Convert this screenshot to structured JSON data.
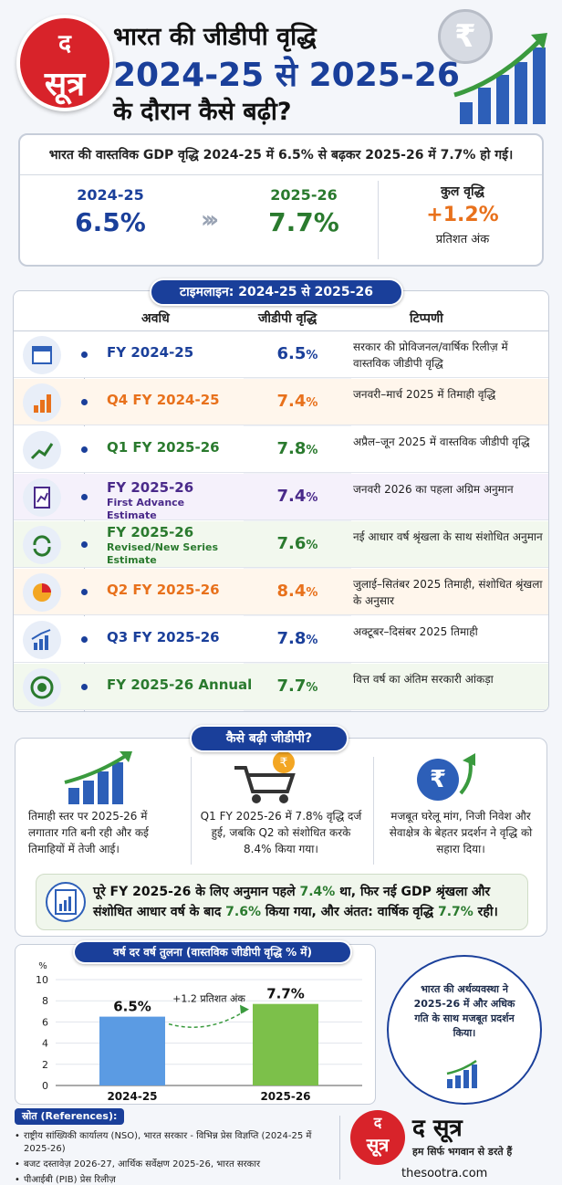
{
  "header": {
    "logo_top": "द",
    "logo_bottom": "सूत्र",
    "title_line1": "भारत की जीडीपी वृद्धि",
    "title_line2": "2024-25 से 2025-26",
    "title_line3": "के दौरान कैसे बढ़ी?",
    "rupee_symbol": "₹"
  },
  "summary": {
    "headline": "भारत की वास्तविक GDP वृद्धि 2024-25 में 6.5% से बढ़कर 2025-26 में 7.7% हो गई।",
    "from_label": "2024-25",
    "from_value": "6.5%",
    "to_label": "2025-26",
    "to_value": "7.7%",
    "chevrons": "›››",
    "change_label": "कुल वृद्धि",
    "change_value": "+1.2%",
    "change_unit": "प्रतिशत अंक"
  },
  "timeline": {
    "title": "टाइमलाइन: 2024-25 से 2025-26",
    "col_period": "अवधि",
    "col_growth": "जीडीपी वृद्धि",
    "col_note": "टिप्पणी",
    "rows": [
      {
        "period": "FY 2024-25",
        "sub": "",
        "value": "6.5",
        "note": "सरकार की प्रोविजनल/वार्षिक रिलीज़ में वास्तविक जीडीपी वृद्धि",
        "color": "#1a3f9a",
        "bg": "#ffffff",
        "icon": "calendar-icon"
      },
      {
        "period": "Q4 FY 2024-25",
        "sub": "",
        "value": "7.4",
        "note": "जनवरी–मार्च 2025 में तिमाही वृद्धि",
        "color": "#e8711c",
        "bg": "#fff6ec",
        "icon": "bar-chart-icon"
      },
      {
        "period": "Q1 FY 2025-26",
        "sub": "",
        "value": "7.8",
        "note": "अप्रैल–जून 2025 में वास्तविक जीडीपी वृद्धि",
        "color": "#2a7a2e",
        "bg": "#ffffff",
        "icon": "growth-chart-icon"
      },
      {
        "period": "FY 2025-26",
        "sub": "First Advance Estimate",
        "value": "7.4",
        "note": "जनवरी 2026 का पहला अग्रिम अनुमान",
        "color": "#4a2a8a",
        "bg": "#f5f1fb",
        "icon": "clipboard-chart-icon"
      },
      {
        "period": "FY 2025-26",
        "sub": "Revised/New Series Estimate",
        "value": "7.6",
        "note": "नई आधार वर्ष श्रृंखला के साथ संशोधित अनुमान",
        "color": "#2a7a2e",
        "bg": "#f2f8ee",
        "icon": "refresh-icon"
      },
      {
        "period": "Q2 FY 2025-26",
        "sub": "",
        "value": "8.4",
        "note": "जुलाई–सितंबर 2025 तिमाही, संशोधित श्रृंखला के अनुसार",
        "color": "#e8711c",
        "bg": "#fff6ec",
        "icon": "pie-chart-icon"
      },
      {
        "period": "Q3 FY 2025-26",
        "sub": "",
        "value": "7.8",
        "note": "अक्टूबर–दिसंबर 2025 तिमाही",
        "color": "#1a3f9a",
        "bg": "#ffffff",
        "icon": "line-chart-icon"
      },
      {
        "period": "FY 2025-26 Annual",
        "sub": "",
        "value": "7.7",
        "note": "वित्त वर्ष का अंतिम सरकारी आंकड़ा",
        "color": "#2a7a2e",
        "bg": "#f2f8ee",
        "icon": "target-icon"
      }
    ]
  },
  "how": {
    "title": "कैसे बढ़ी जीडीपी?",
    "col1": "तिमाही स्तर पर 2025-26 में लगातार गति बनी रही और कई तिमाहियों में तेजी आई।",
    "col2": "Q1 FY 2025-26 में 7.8% वृद्धि दर्ज हुई, जबकि Q2 को संशोधित करके 8.4% किया गया।",
    "col3": "मजबूत घरेलू मांग, निजी निवेश और सेवाक्षेत्र के बेहतर प्रदर्शन ने वृद्धि को सहारा दिया।",
    "rupee_symbol": "₹",
    "highlight_a": "पूरे FY 2025-26 के लिए अनुमान पहले ",
    "highlight_b": "7.4%",
    "highlight_c": " था, फिर नई GDP श्रृंखला और संशोधित आधार वर्ष के बाद ",
    "highlight_d": "7.6%",
    "highlight_e": " किया गया, और अंतत: वार्षिक वृद्धि ",
    "highlight_f": "7.7%",
    "highlight_g": " रही।"
  },
  "yoy": {
    "title": "वर्ष दर वर्ष तुलना (वास्तविक जीडीपी वृद्धि % में)",
    "arrow_label": "+1.2 प्रतिशत अंक",
    "circle_text": "भारत की अर्थव्यवस्था ने 2025-26 में और अधिक गति के साथ मजबूत प्रदर्शन किया।"
  },
  "chart_data": {
    "type": "bar",
    "categories": [
      "2024-25",
      "2025-26"
    ],
    "values": [
      6.5,
      7.7
    ],
    "value_labels": [
      "6.5%",
      "7.7%"
    ],
    "bar_colors": [
      "#5b9be3",
      "#7cc04a"
    ],
    "ylabel": "%",
    "yticks": [
      "0",
      "2",
      "4",
      "6",
      "8",
      "10"
    ],
    "ylim": [
      0,
      10
    ],
    "grid": true
  },
  "footer": {
    "refs_title": "स्रोत (References):",
    "refs": [
      "राष्ट्रीय सांख्यिकी कार्यालय (NSO), भारत सरकार - विभिन्न प्रेस विज्ञप्ति (2024-25 में 2025-26)",
      "बजट दस्तावेज़ 2026-27, आर्थिक सर्वेक्षण 2025-26, भारत सरकार",
      "पीआईबी (PIB) प्रेस रिलीज़"
    ],
    "brand_name": "द सूत्र",
    "tagline": "हम सिर्फ भगवान से डरते हैं",
    "website": "thesootra.com",
    "logo_top": "द",
    "logo_bottom": "सूत्र"
  }
}
